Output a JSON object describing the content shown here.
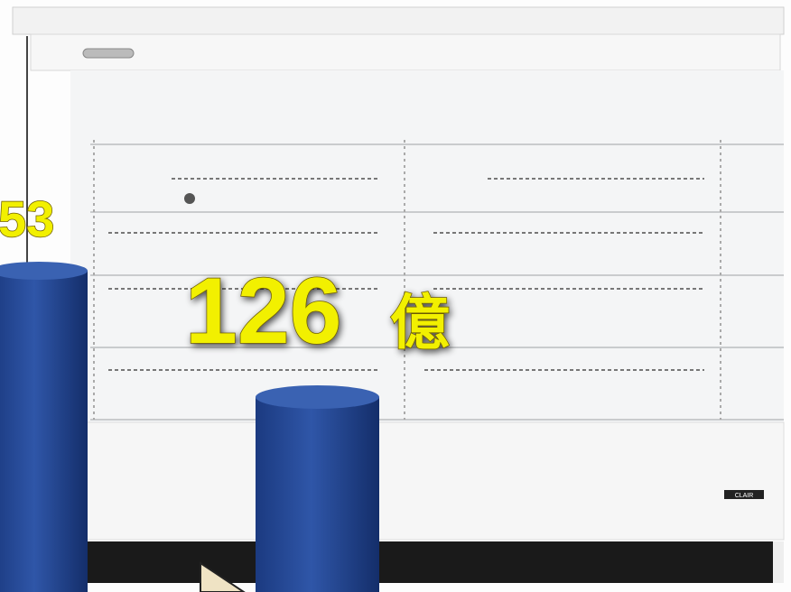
{
  "labels": {
    "left_value": "53",
    "main_value": "126",
    "main_unit": "億"
  },
  "brand": "CLAIR"
}
